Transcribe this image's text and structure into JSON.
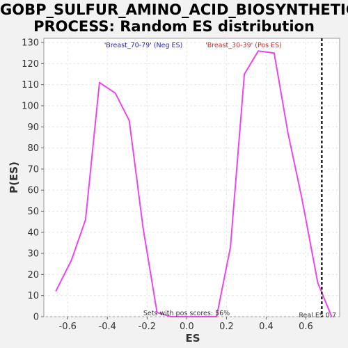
{
  "chart_data": {
    "type": "line",
    "title_lines": [
      "GOBP_SULFUR_AMINO_ACID_BIOSYNTHETIC_",
      "PROCESS: Random ES distribution"
    ],
    "xlabel": "ES",
    "ylabel": "P(ES)",
    "xlim": [
      -0.72,
      0.77
    ],
    "ylim": [
      0,
      132
    ],
    "x_ticks": [
      -0.6,
      -0.4,
      -0.2,
      0.0,
      0.2,
      0.4,
      0.6
    ],
    "x_tick_labels": [
      "-0.6",
      "-0.4",
      "-0.2",
      "0.0",
      "0.2",
      "0.4",
      "0.6"
    ],
    "y_ticks": [
      0,
      10,
      20,
      30,
      40,
      50,
      60,
      70,
      80,
      90,
      100,
      110,
      120,
      130
    ],
    "y_tick_labels": [
      "0",
      "10",
      "20",
      "30",
      "40",
      "50",
      "60",
      "70",
      "80",
      "90",
      "100",
      "110",
      "120",
      "130"
    ],
    "grid": true,
    "series": [
      {
        "color": "#ee44ee",
        "x": [
          -0.66,
          -0.58,
          -0.51,
          -0.44,
          -0.36,
          -0.29,
          -0.22,
          -0.15,
          -0.08,
          0.0,
          0.07,
          0.15,
          0.22,
          0.29,
          0.36,
          0.44,
          0.51,
          0.58,
          0.66,
          0.73
        ],
        "y": [
          12,
          27,
          46,
          111,
          106,
          93,
          42,
          2,
          0,
          0,
          0,
          0,
          33,
          115,
          126,
          125,
          87,
          56,
          16,
          0
        ]
      }
    ],
    "annotations": {
      "neg_label": "'Breast_70-79' (Neg ES)",
      "neg_color": "#2222cc",
      "pos_label": "'Breast_30-39' (Pos ES)",
      "pos_color": "#dd2222",
      "bottom_text": "Sets with pos scores: 56%",
      "real_es_label": "Real ES 0.7",
      "real_es_value": 0.68
    }
  }
}
